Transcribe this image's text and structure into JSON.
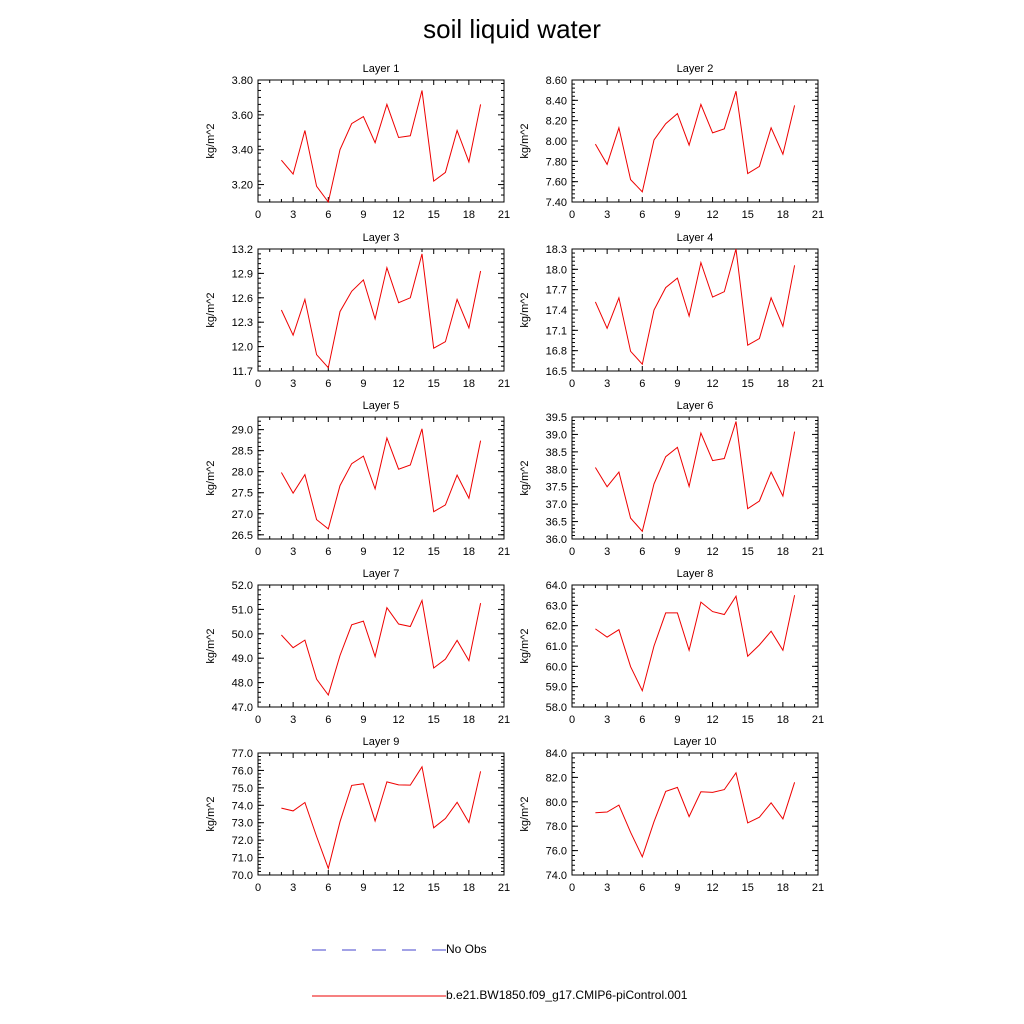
{
  "title": "soil liquid water",
  "legend": [
    {
      "label": "No Obs",
      "color": "#4444cc",
      "style": "dashed"
    },
    {
      "label": "b.e21.BW1850.f09_g17.CMIP6-piControl.001",
      "color": "#ee0000",
      "style": "solid"
    }
  ],
  "chart_data": [
    {
      "type": "line",
      "title": "Layer 1",
      "ylabel": "kg/m^2",
      "xlim": [
        0,
        21
      ],
      "ylim": [
        3.1,
        3.8
      ],
      "xticks": [
        0,
        3,
        6,
        9,
        12,
        15,
        18,
        21
      ],
      "yticks": [
        "3.20",
        "3.40",
        "3.60",
        "3.80"
      ],
      "series": [
        {
          "name": "b.e21.BW1850.f09_g17.CMIP6-piControl.001",
          "x": [
            2,
            3,
            4,
            5,
            6,
            7,
            8,
            9,
            10,
            11,
            12,
            13,
            14,
            15,
            16,
            17,
            18,
            19
          ],
          "y": [
            3.34,
            3.26,
            3.51,
            3.19,
            3.1,
            3.4,
            3.55,
            3.59,
            3.44,
            3.66,
            3.47,
            3.48,
            3.74,
            3.22,
            3.27,
            3.51,
            3.33,
            3.66
          ]
        }
      ]
    },
    {
      "type": "line",
      "title": "Layer 2",
      "ylabel": "kg/m^2",
      "xlim": [
        0,
        21
      ],
      "ylim": [
        7.4,
        8.6
      ],
      "xticks": [
        0,
        3,
        6,
        9,
        12,
        15,
        18,
        21
      ],
      "yticks": [
        "7.40",
        "7.60",
        "7.80",
        "8.00",
        "8.20",
        "8.40",
        "8.60"
      ],
      "series": [
        {
          "name": "b.e21.BW1850.f09_g17.CMIP6-piControl.001",
          "x": [
            2,
            3,
            4,
            5,
            6,
            7,
            8,
            9,
            10,
            11,
            12,
            13,
            14,
            15,
            16,
            17,
            18,
            19
          ],
          "y": [
            7.97,
            7.77,
            8.13,
            7.62,
            7.5,
            8.01,
            8.17,
            8.27,
            7.96,
            8.36,
            8.08,
            8.12,
            8.49,
            7.68,
            7.75,
            8.13,
            7.87,
            8.35
          ]
        }
      ]
    },
    {
      "type": "line",
      "title": "Layer 3",
      "ylabel": "kg/m^2",
      "xlim": [
        0,
        21
      ],
      "ylim": [
        11.7,
        13.2
      ],
      "xticks": [
        0,
        3,
        6,
        9,
        12,
        15,
        18,
        21
      ],
      "yticks": [
        "11.7",
        "12.0",
        "12.3",
        "12.6",
        "12.9",
        "13.2"
      ],
      "series": [
        {
          "name": "b.e21.BW1850.f09_g17.CMIP6-piControl.001",
          "x": [
            2,
            3,
            4,
            5,
            6,
            7,
            8,
            9,
            10,
            11,
            12,
            13,
            14,
            15,
            16,
            17,
            18,
            19
          ],
          "y": [
            12.45,
            12.14,
            12.58,
            11.9,
            11.74,
            12.43,
            12.68,
            12.82,
            12.34,
            12.97,
            12.54,
            12.6,
            13.14,
            11.98,
            12.06,
            12.58,
            12.23,
            12.93
          ]
        }
      ]
    },
    {
      "type": "line",
      "title": "Layer 4",
      "ylabel": "kg/m^2",
      "xlim": [
        0,
        21
      ],
      "ylim": [
        16.5,
        18.3
      ],
      "xticks": [
        0,
        3,
        6,
        9,
        12,
        15,
        18,
        21
      ],
      "yticks": [
        "16.5",
        "16.8",
        "17.1",
        "17.4",
        "17.7",
        "18.0",
        "18.3"
      ],
      "series": [
        {
          "name": "b.e21.BW1850.f09_g17.CMIP6-piControl.001",
          "x": [
            2,
            3,
            4,
            5,
            6,
            7,
            8,
            9,
            10,
            11,
            12,
            13,
            14,
            15,
            16,
            17,
            18,
            19
          ],
          "y": [
            17.52,
            17.13,
            17.58,
            16.79,
            16.6,
            17.4,
            17.73,
            17.87,
            17.31,
            18.1,
            17.59,
            17.67,
            18.3,
            16.88,
            16.98,
            17.58,
            17.16,
            18.06
          ]
        }
      ]
    },
    {
      "type": "line",
      "title": "Layer 5",
      "ylabel": "kg/m^2",
      "xlim": [
        0,
        21
      ],
      "ylim": [
        26.4,
        29.3
      ],
      "xticks": [
        0,
        3,
        6,
        9,
        12,
        15,
        18,
        21
      ],
      "yticks": [
        "26.5",
        "27.0",
        "27.5",
        "28.0",
        "28.5",
        "29.0"
      ],
      "series": [
        {
          "name": "b.e21.BW1850.f09_g17.CMIP6-piControl.001",
          "x": [
            2,
            3,
            4,
            5,
            6,
            7,
            8,
            9,
            10,
            11,
            12,
            13,
            14,
            15,
            16,
            17,
            18,
            19
          ],
          "y": [
            27.98,
            27.49,
            27.93,
            26.86,
            26.64,
            27.67,
            28.19,
            28.37,
            27.59,
            28.8,
            28.06,
            28.16,
            29.02,
            27.05,
            27.21,
            27.92,
            27.37,
            28.74
          ]
        }
      ]
    },
    {
      "type": "line",
      "title": "Layer 6",
      "ylabel": "kg/m^2",
      "xlim": [
        0,
        21
      ],
      "ylim": [
        36.0,
        39.5
      ],
      "xticks": [
        0,
        3,
        6,
        9,
        12,
        15,
        18,
        21
      ],
      "yticks": [
        "36.0",
        "36.5",
        "37.0",
        "37.5",
        "38.0",
        "38.5",
        "39.0",
        "39.5"
      ],
      "series": [
        {
          "name": "b.e21.BW1850.f09_g17.CMIP6-piControl.001",
          "x": [
            2,
            3,
            4,
            5,
            6,
            7,
            8,
            9,
            10,
            11,
            12,
            13,
            14,
            15,
            16,
            17,
            18,
            19
          ],
          "y": [
            38.05,
            37.5,
            37.92,
            36.6,
            36.22,
            37.58,
            38.36,
            38.63,
            37.51,
            39.04,
            38.25,
            38.31,
            39.37,
            36.87,
            37.09,
            37.92,
            37.23,
            39.08
          ]
        }
      ]
    },
    {
      "type": "line",
      "title": "Layer 7",
      "ylabel": "kg/m^2",
      "xlim": [
        0,
        21
      ],
      "ylim": [
        47.0,
        52.0
      ],
      "xticks": [
        0,
        3,
        6,
        9,
        12,
        15,
        18,
        21
      ],
      "yticks": [
        "47.0",
        "48.0",
        "49.0",
        "50.0",
        "51.0",
        "52.0"
      ],
      "series": [
        {
          "name": "b.e21.BW1850.f09_g17.CMIP6-piControl.001",
          "x": [
            2,
            3,
            4,
            5,
            6,
            7,
            8,
            9,
            10,
            11,
            12,
            13,
            14,
            15,
            16,
            17,
            18,
            19
          ],
          "y": [
            49.95,
            49.43,
            49.74,
            48.14,
            47.49,
            49.11,
            50.37,
            50.52,
            49.07,
            51.07,
            50.4,
            50.3,
            51.37,
            48.6,
            48.96,
            49.73,
            48.9,
            51.26
          ]
        }
      ]
    },
    {
      "type": "line",
      "title": "Layer 8",
      "ylabel": "kg/m^2",
      "xlim": [
        0,
        21
      ],
      "ylim": [
        58.0,
        64.0
      ],
      "xticks": [
        0,
        3,
        6,
        9,
        12,
        15,
        18,
        21
      ],
      "yticks": [
        "58.0",
        "59.0",
        "60.0",
        "61.0",
        "62.0",
        "63.0",
        "64.0"
      ],
      "series": [
        {
          "name": "b.e21.BW1850.f09_g17.CMIP6-piControl.001",
          "x": [
            2,
            3,
            4,
            5,
            6,
            7,
            8,
            9,
            10,
            11,
            12,
            13,
            14,
            15,
            16,
            17,
            18,
            19
          ],
          "y": [
            61.84,
            61.44,
            61.8,
            59.98,
            58.8,
            61.0,
            62.63,
            62.63,
            60.79,
            63.16,
            62.69,
            62.55,
            63.45,
            60.5,
            61.05,
            61.73,
            60.79,
            63.5
          ]
        }
      ]
    },
    {
      "type": "line",
      "title": "Layer 9",
      "ylabel": "kg/m^2",
      "xlim": [
        0,
        21
      ],
      "ylim": [
        70.0,
        77.0
      ],
      "xticks": [
        0,
        3,
        6,
        9,
        12,
        15,
        18,
        21
      ],
      "yticks": [
        "70.0",
        "71.0",
        "72.0",
        "73.0",
        "74.0",
        "75.0",
        "76.0",
        "77.0"
      ],
      "series": [
        {
          "name": "b.e21.BW1850.f09_g17.CMIP6-piControl.001",
          "x": [
            2,
            3,
            4,
            5,
            6,
            7,
            8,
            9,
            10,
            11,
            12,
            13,
            14,
            15,
            16,
            17,
            18,
            19
          ],
          "y": [
            73.84,
            73.68,
            74.16,
            72.21,
            70.38,
            73.06,
            75.14,
            75.24,
            73.1,
            75.34,
            75.17,
            75.16,
            76.21,
            72.71,
            73.24,
            74.17,
            73.01,
            75.95
          ]
        }
      ]
    },
    {
      "type": "line",
      "title": "Layer 10",
      "ylabel": "kg/m^2",
      "xlim": [
        0,
        21
      ],
      "ylim": [
        74.0,
        84.0
      ],
      "xticks": [
        0,
        3,
        6,
        9,
        12,
        15,
        18,
        21
      ],
      "yticks": [
        "74.0",
        "76.0",
        "78.0",
        "80.0",
        "82.0",
        "84.0"
      ],
      "series": [
        {
          "name": "b.e21.BW1850.f09_g17.CMIP6-piControl.001",
          "x": [
            2,
            3,
            4,
            5,
            6,
            7,
            8,
            9,
            10,
            11,
            12,
            13,
            14,
            15,
            16,
            17,
            18,
            19
          ],
          "y": [
            79.1,
            79.16,
            79.73,
            77.5,
            75.49,
            78.37,
            80.85,
            81.18,
            78.79,
            80.82,
            80.77,
            81.0,
            82.38,
            78.27,
            78.74,
            79.92,
            78.6,
            81.6
          ]
        }
      ]
    }
  ]
}
